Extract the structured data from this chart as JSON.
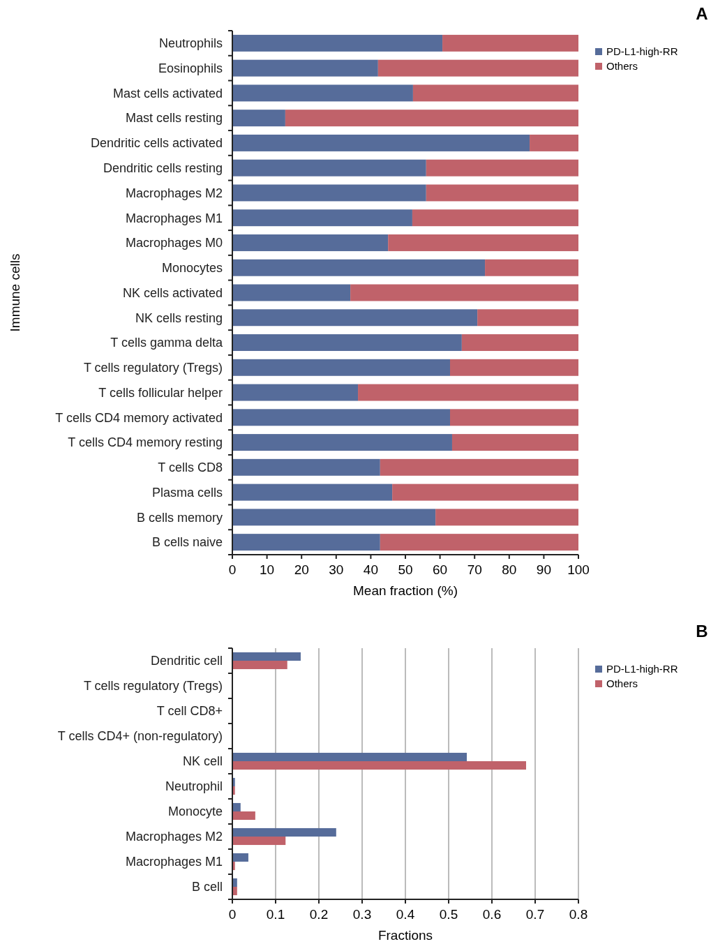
{
  "chart_data": [
    {
      "type": "bar",
      "orientation": "horizontal",
      "stacked": true,
      "xlabel": "Mean fraction (%)",
      "ylabel": "Immune cells",
      "annotations": [
        "A"
      ],
      "legend": "top right",
      "categories": [
        "Neutrophils",
        "Eosinophils",
        "Mast cells activated",
        "Mast cells resting",
        "Dendritic cells activated",
        "Dendritic cells resting",
        "Macrophages M2",
        "Macrophages M1",
        "Macrophages M0",
        "Monocytes",
        "NK cells activated",
        "NK cells resting",
        "T cells gamma delta",
        "T cells regulatory (Tregs)",
        "T cells follicular helper",
        "T cells CD4 memory activated",
        "T cells CD4 memory resting",
        "T cells CD8",
        "Plasma cells",
        "B cells memory",
        "B cells naive"
      ],
      "xlim": [
        0,
        100
      ],
      "xticks": [
        0,
        10,
        20,
        30,
        40,
        50,
        60,
        70,
        80,
        90,
        100
      ],
      "series": [
        {
          "name": "PD-L1-high-RR",
          "color": "#566c9a",
          "values": [
            60.7,
            42.1,
            52.2,
            15.3,
            85.9,
            56.0,
            56.0,
            52.0,
            45.0,
            73.0,
            34.1,
            70.8,
            66.3,
            62.9,
            36.3,
            62.9,
            63.5,
            42.7,
            46.2,
            58.7,
            42.7
          ]
        },
        {
          "name": "Others",
          "color": "#c0626a",
          "values": [
            39.3,
            57.9,
            47.8,
            84.7,
            14.1,
            44.0,
            44.0,
            48.0,
            55.0,
            27.0,
            65.9,
            29.2,
            33.7,
            37.1,
            63.7,
            37.1,
            36.5,
            57.3,
            53.8,
            41.3,
            57.3
          ]
        }
      ]
    },
    {
      "type": "bar",
      "orientation": "horizontal",
      "xlabel": "Fractions",
      "annotations": [
        "B"
      ],
      "legend": "top right",
      "grid": "x",
      "categories": [
        "Dendritic cell",
        "T cells regulatory (Tregs)",
        "T cell CD8+",
        "T cells CD4+ (non-regulatory)",
        "NK cell",
        "Neutrophil",
        "Monocyte",
        "Macrophages M2",
        "Macrophages M1",
        "B cell"
      ],
      "xlim": [
        0,
        0.8
      ],
      "xticks": [
        0,
        0.1,
        0.2,
        0.3,
        0.4,
        0.5,
        0.6,
        0.7,
        0.8
      ],
      "series": [
        {
          "name": "PD-L1-high-RR",
          "color": "#566c9a",
          "values": [
            0.158,
            0,
            0,
            0,
            0.542,
            0.006,
            0.019,
            0.24,
            0.037,
            0.011
          ]
        },
        {
          "name": "Others",
          "color": "#c0626a",
          "values": [
            0.127,
            0,
            0,
            0,
            0.679,
            0.006,
            0.053,
            0.123,
            0.006,
            0.011
          ]
        }
      ]
    }
  ]
}
